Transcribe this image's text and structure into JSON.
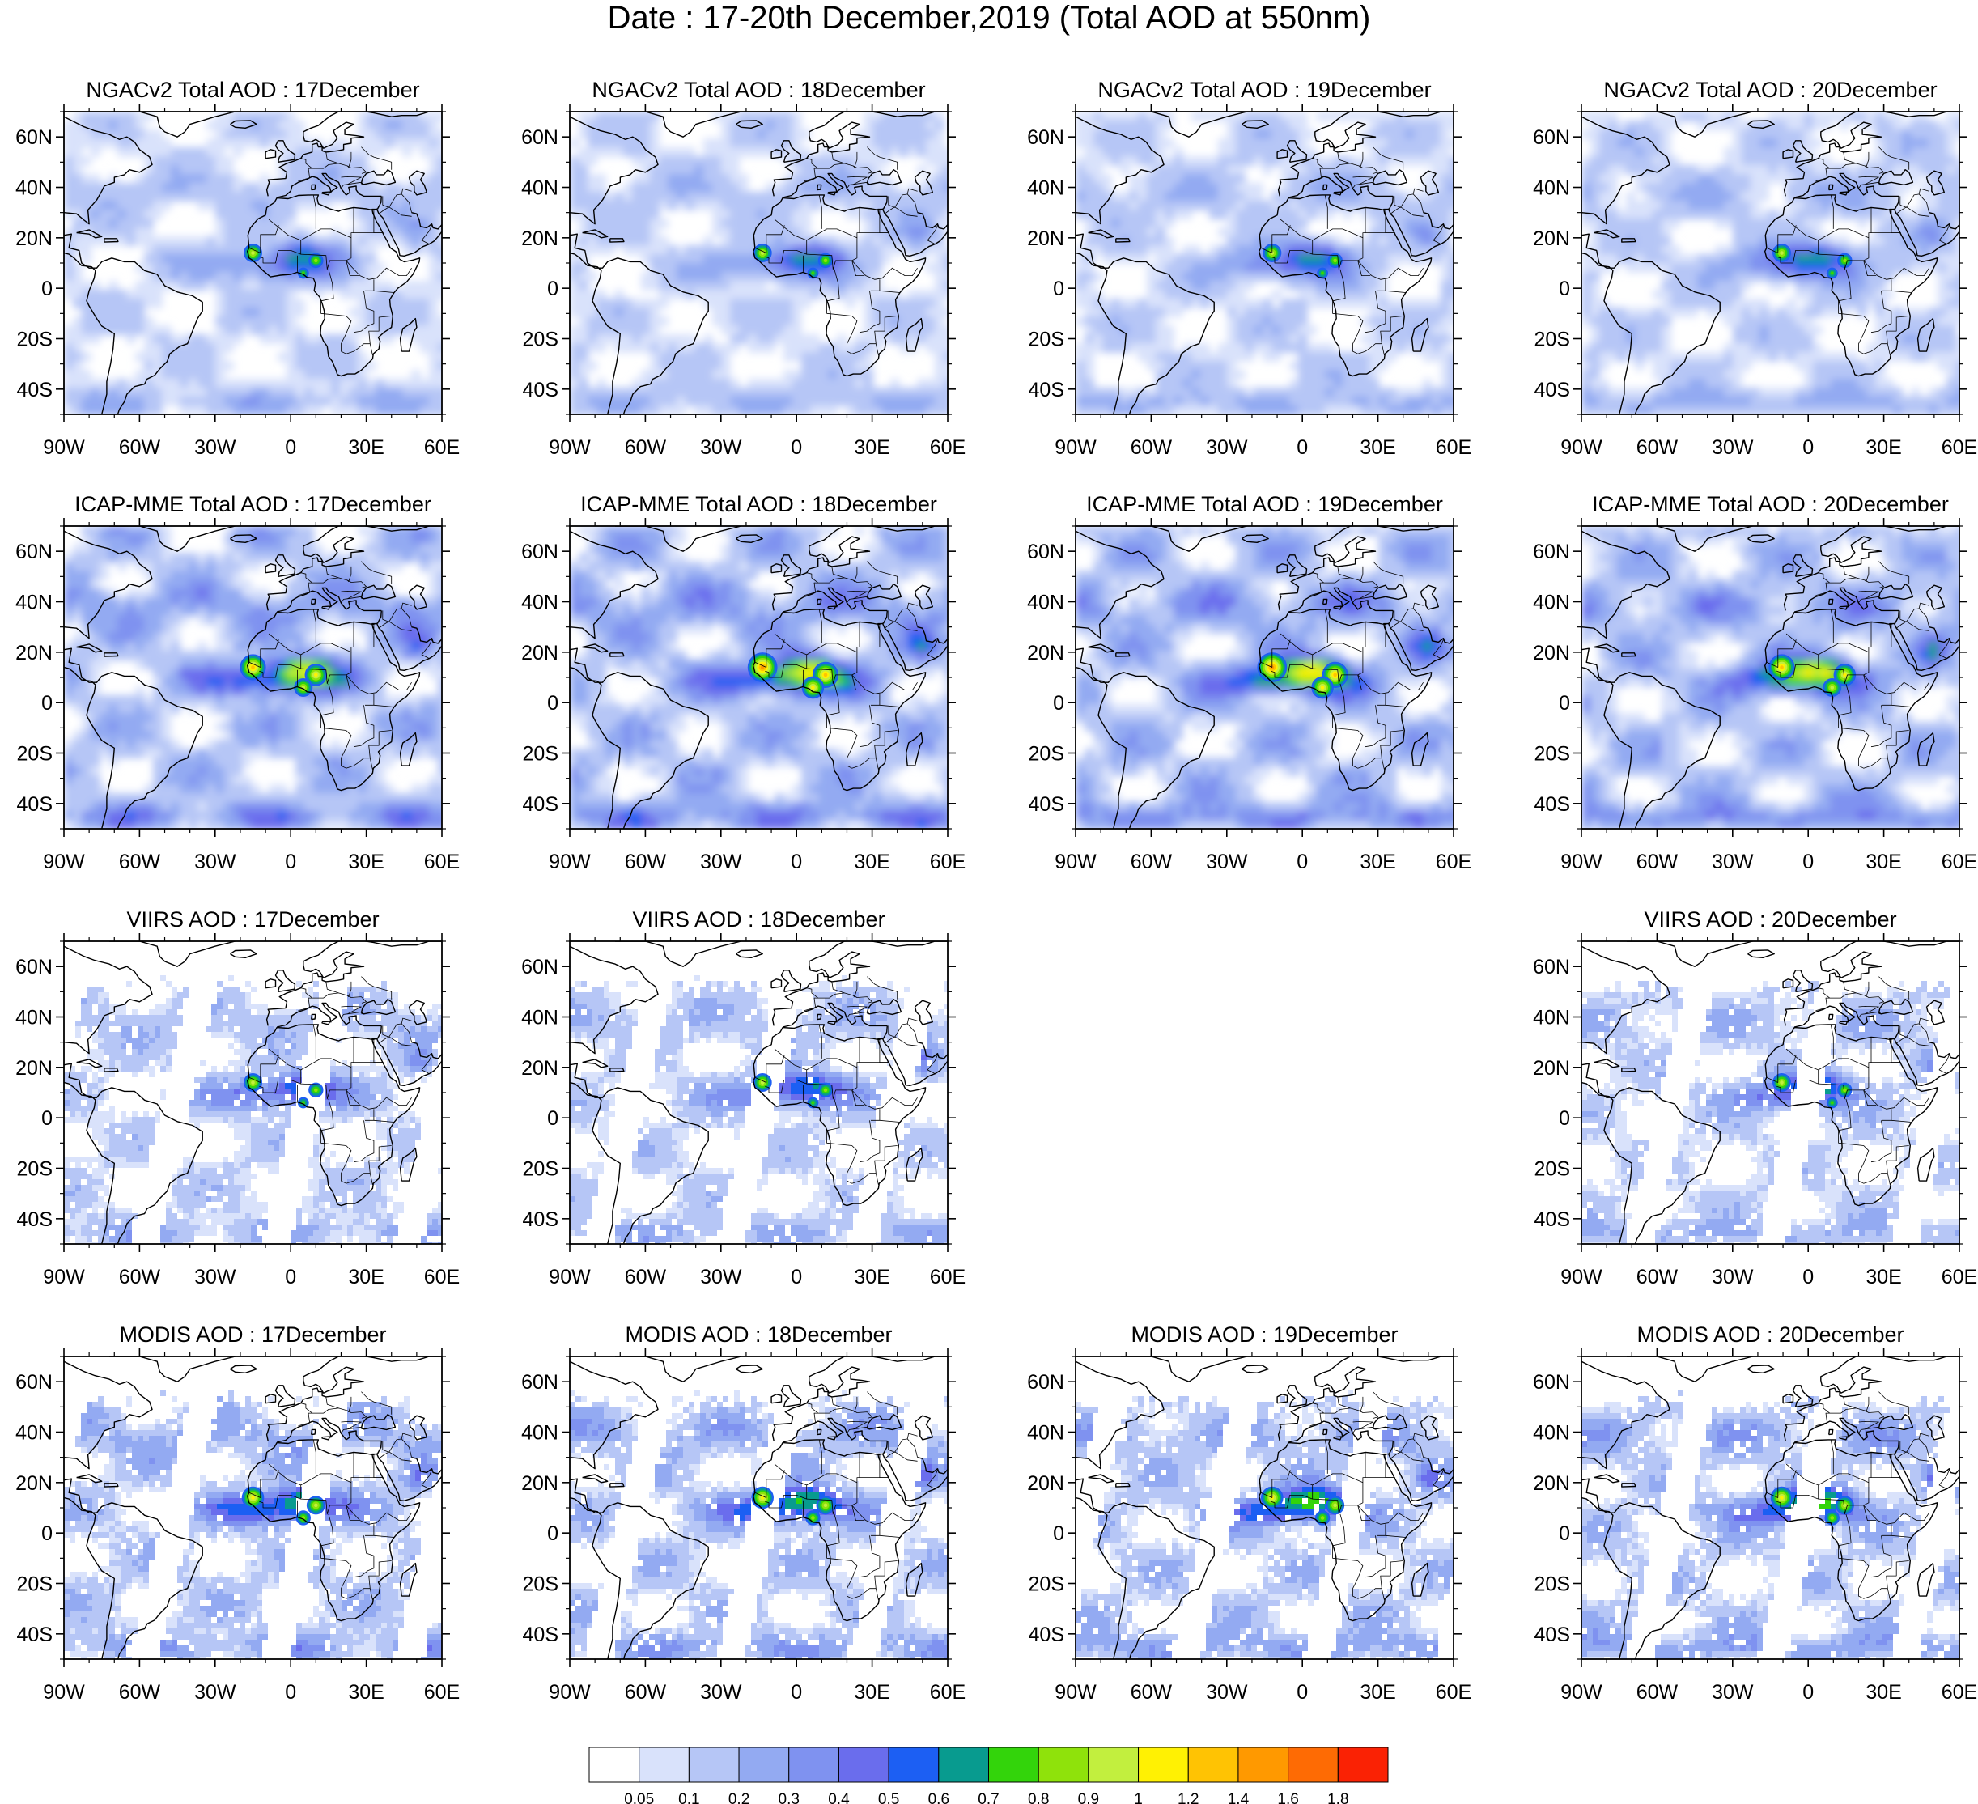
{
  "figure": {
    "title": "Date : 17-20th December,2019 (Total AOD at 550nm)"
  },
  "axes": {
    "lon_ticks": [
      "90W",
      "60W",
      "30W",
      "0",
      "30E",
      "60E"
    ],
    "lat_ticks": [
      "60N",
      "40N",
      "20N",
      "0",
      "20S",
      "40S"
    ],
    "lon_range_deg": [
      -90,
      60
    ],
    "lat_range_deg": [
      -50,
      70
    ]
  },
  "rows": [
    {
      "product": "NGACv2",
      "panels": [
        {
          "title": "NGACv2 Total AOD : 17December",
          "level": 0.95
        },
        {
          "title": "NGACv2 Total AOD : 18December",
          "level": 0.95
        },
        {
          "title": "NGACv2 Total AOD : 19December",
          "level": 1.0
        },
        {
          "title": "NGACv2 Total AOD : 20December",
          "level": 1.05
        }
      ]
    },
    {
      "product": "ICAP-MME",
      "panels": [
        {
          "title": "ICAP-MME Total AOD : 17December",
          "level": 1.6
        },
        {
          "title": "ICAP-MME Total AOD : 18December",
          "level": 1.7
        },
        {
          "title": "ICAP-MME Total AOD : 19December",
          "level": 1.7
        },
        {
          "title": "ICAP-MME Total AOD : 20December",
          "level": 1.6
        }
      ]
    },
    {
      "product": "VIIRS",
      "panels": [
        {
          "title": "VIIRS AOD : 17December",
          "level": 1.0
        },
        {
          "title": "VIIRS AOD : 18December",
          "level": 1.0
        },
        null,
        {
          "title": "VIIRS AOD : 20December",
          "level": 1.0
        }
      ]
    },
    {
      "product": "MODIS",
      "panels": [
        {
          "title": "MODIS AOD : 17December",
          "level": 1.25
        },
        {
          "title": "MODIS AOD : 18December",
          "level": 1.25
        },
        {
          "title": "MODIS AOD : 19December",
          "level": 1.25
        },
        {
          "title": "MODIS AOD : 20December",
          "level": 1.25
        }
      ]
    }
  ],
  "colorbar": {
    "labels": [
      "0.05",
      "0.1",
      "0.2",
      "0.3",
      "0.4",
      "0.5",
      "0.6",
      "0.7",
      "0.8",
      "0.9",
      "1",
      "1.2",
      "1.4",
      "1.6",
      "1.8"
    ],
    "colors": [
      "#ffffff",
      "#d9e2fb",
      "#b6c6f6",
      "#93aaf2",
      "#7f92f0",
      "#6a6ded",
      "#1c5ff3",
      "#089b8f",
      "#33d40b",
      "#8fe20b",
      "#c2ef3e",
      "#fff103",
      "#ffc303",
      "#ff9900",
      "#fe6b04",
      "#fa2204"
    ]
  }
}
